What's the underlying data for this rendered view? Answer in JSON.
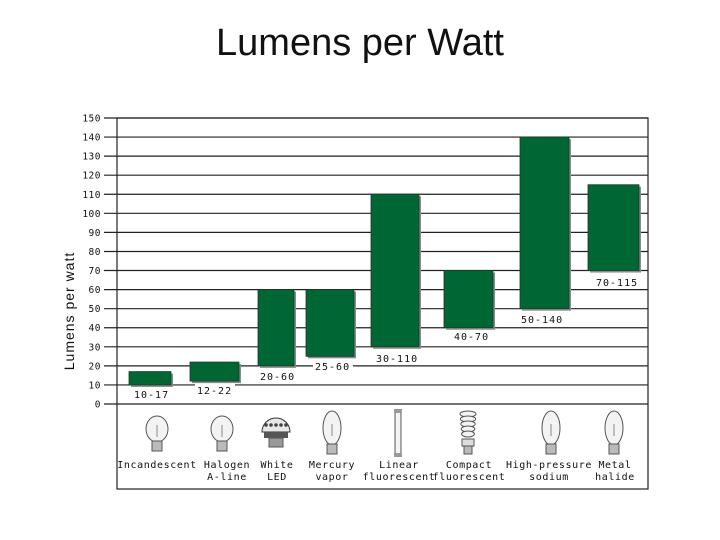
{
  "title": "Lumens per Watt",
  "chart_data": {
    "type": "bar",
    "variant": "floating-range",
    "ylabel": "Lumens per watt",
    "ylim": [
      0,
      150
    ],
    "yticks": [
      0,
      10,
      20,
      30,
      40,
      50,
      60,
      70,
      80,
      90,
      100,
      110,
      120,
      130,
      140,
      150
    ],
    "bar_color": "#006633",
    "grid": true,
    "categories": [
      {
        "lines": [
          "Incandescent"
        ],
        "icon": "incandescent-bulb-icon",
        "low": 10,
        "high": 17,
        "range": "10-17"
      },
      {
        "lines": [
          "Halogen",
          "A-line"
        ],
        "icon": "halogen-bulb-icon",
        "low": 12,
        "high": 22,
        "range": "12-22"
      },
      {
        "lines": [
          "White",
          "LED"
        ],
        "icon": "led-bulb-icon",
        "low": 20,
        "high": 60,
        "range": "20-60"
      },
      {
        "lines": [
          "Mercury",
          "vapor"
        ],
        "icon": "mercury-vapor-bulb-icon",
        "low": 25,
        "high": 60,
        "range": "25-60"
      },
      {
        "lines": [
          "Linear",
          "fluorescent"
        ],
        "icon": "linear-fluorescent-tube-icon",
        "low": 30,
        "high": 110,
        "range": "30-110"
      },
      {
        "lines": [
          "Compact",
          "fluorescent"
        ],
        "icon": "compact-fluorescent-bulb-icon",
        "low": 40,
        "high": 70,
        "range": "40-70"
      },
      {
        "lines": [
          "High-pressure",
          "sodium"
        ],
        "icon": "high-pressure-sodium-bulb-icon",
        "low": 50,
        "high": 140,
        "range": "50-140"
      },
      {
        "lines": [
          "Metal",
          "halide"
        ],
        "icon": "metal-halide-bulb-icon",
        "low": 70,
        "high": 115,
        "range": "70-115"
      }
    ]
  }
}
